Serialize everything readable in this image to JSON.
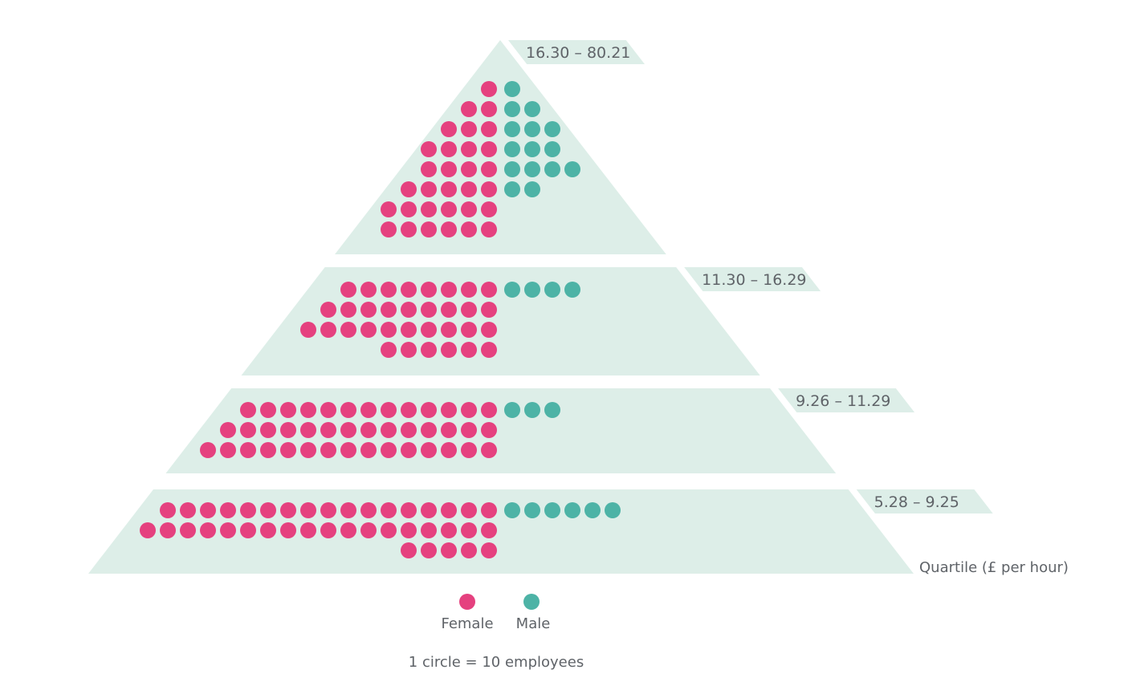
{
  "colors": {
    "female": "#e5417f",
    "male": "#4db3a6",
    "band": "#ddeee8",
    "text": "#5f6368"
  },
  "chart_data": {
    "type": "pictogram-pyramid",
    "unit_label": "1 circle = 10 employees",
    "employees_per_circle": 10,
    "axis_title": "Quartile (£ per hour)",
    "legend": [
      {
        "key": "female",
        "label": "Female"
      },
      {
        "key": "male",
        "label": "Male"
      }
    ],
    "quartiles": [
      {
        "label": "16.30 – 80.21",
        "female_rows": [
          1,
          2,
          3,
          4,
          4,
          5,
          6,
          6
        ],
        "male_rows": [
          1,
          2,
          3,
          3,
          4,
          2,
          0,
          0
        ]
      },
      {
        "label": "11.30 – 16.29",
        "female_rows": [
          8,
          9,
          10,
          6
        ],
        "male_rows": [
          4,
          0,
          0,
          0
        ]
      },
      {
        "label": "9.26 – 11.29",
        "female_rows": [
          13,
          14,
          15
        ],
        "male_rows": [
          3,
          0,
          0
        ]
      },
      {
        "label": "5.28 – 9.25",
        "female_rows": [
          17,
          18,
          5
        ],
        "male_rows": [
          6,
          0,
          0
        ]
      }
    ]
  }
}
